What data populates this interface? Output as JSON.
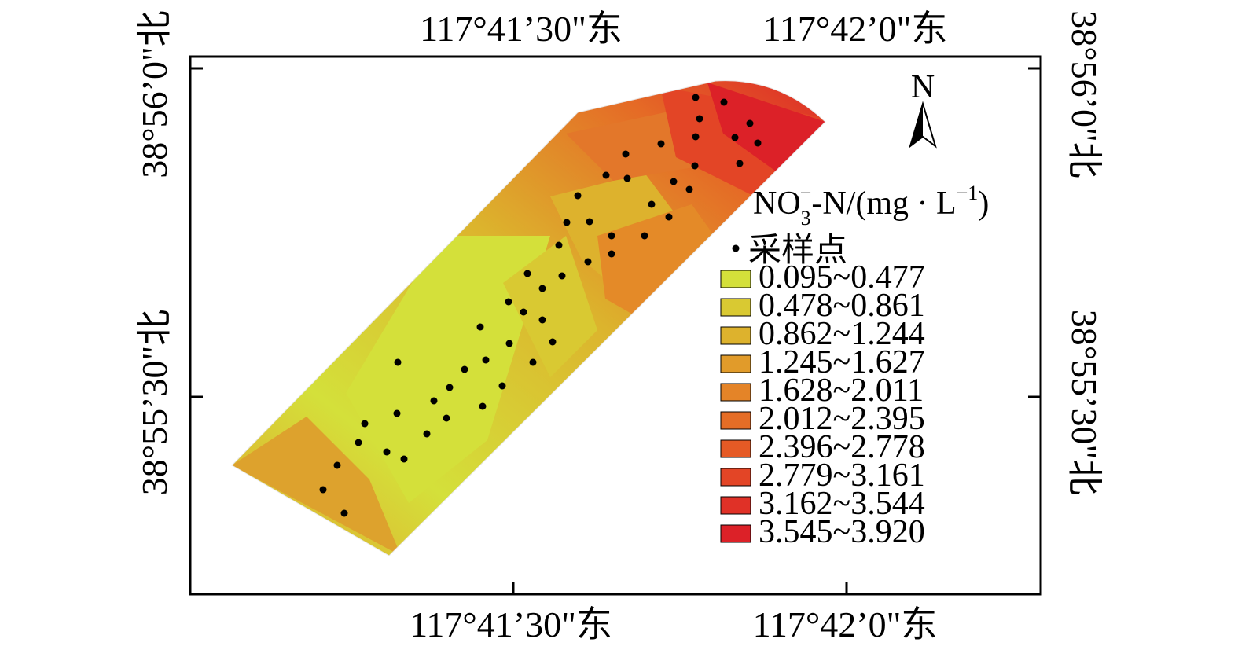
{
  "map": {
    "top_labels": [
      "117°41’30\"东",
      "117°42’0\"东"
    ],
    "bottom_labels": [
      "117°41’30\"东",
      "117°42’0\"东"
    ],
    "left_labels": [
      "38°56’0\"北",
      "38°55’30\"北"
    ],
    "right_labels": [
      "38°56’0\"北",
      "38°55’30\"北"
    ],
    "north_label": "N",
    "legend": {
      "title_main": "NO",
      "title_sub": "3",
      "title_sup1": "−",
      "title_mid": "-N/(mg · L",
      "title_sup2": "−1",
      "title_end": ")",
      "sample_label": "采样点",
      "classes": [
        {
          "label": "0.095~0.477",
          "color": "#d4e03a"
        },
        {
          "label": "0.478~0.861",
          "color": "#d9c932"
        },
        {
          "label": "0.862~1.244",
          "color": "#ddb22d"
        },
        {
          "label": "1.245~1.627",
          "color": "#e19b2a"
        },
        {
          "label": "1.628~2.011",
          "color": "#e48428"
        },
        {
          "label": "2.012~2.395",
          "color": "#e56d26"
        },
        {
          "label": "2.396~2.778",
          "color": "#e55a25"
        },
        {
          "label": "2.779~3.161",
          "color": "#e34526"
        },
        {
          "label": "3.162~3.544",
          "color": "#e03127"
        },
        {
          "label": "3.545~3.920",
          "color": "#dc2128"
        }
      ]
    }
  }
}
